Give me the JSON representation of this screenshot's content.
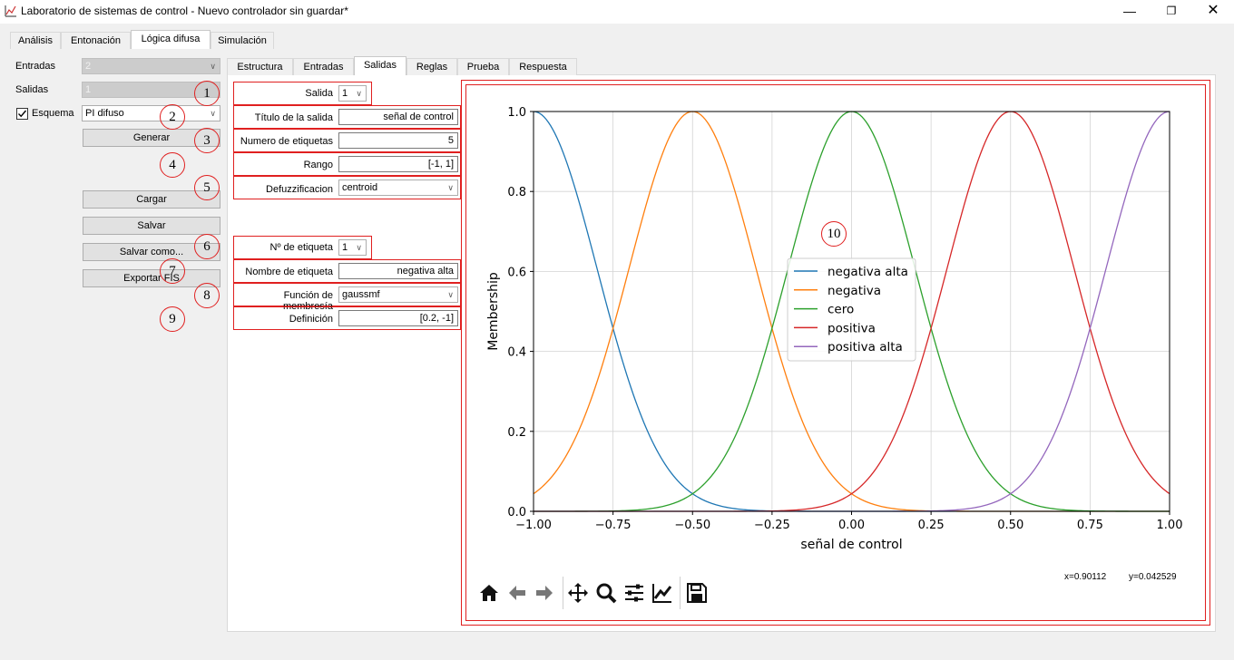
{
  "window": {
    "title": "Laboratorio de sistemas de control - Nuevo controlador sin guardar*"
  },
  "main_tabs": [
    "Análisis",
    "Entonación",
    "Lógica difusa",
    "Simulación"
  ],
  "left_panel": {
    "entradas_label": "Entradas",
    "entradas_value": "2",
    "salidas_label": "Salidas",
    "salidas_value": "1",
    "esquema_label": "Esquema",
    "esquema_checked": true,
    "esquema_value": "PI difuso",
    "generar": "Generar",
    "cargar": "Cargar",
    "salvar": "Salvar",
    "salvar_como": "Salvar como...",
    "exportar": "Exportar FIS"
  },
  "sub_tabs": [
    "Estructura",
    "Entradas",
    "Salidas",
    "Reglas",
    "Prueba",
    "Respuesta"
  ],
  "form": {
    "salida_label": "Salida",
    "salida_value": "1",
    "titulo_label": "Título de la salida",
    "titulo_value": "señal de control",
    "numero_label": "Numero de etiquetas",
    "numero_value": "5",
    "rango_label": "Rango",
    "rango_value": "[-1, 1]",
    "defuzz_label": "Defuzzificacion",
    "defuzz_value": "centroid",
    "etiqueta_label": "Nº de etiqueta",
    "etiqueta_value": "1",
    "nombre_label": "Nombre de etiqueta",
    "nombre_value": "negativa alta",
    "funcion_label": "Función de membresía",
    "funcion_value": "gaussmf",
    "definicion_label": "Definición",
    "definicion_value": "[0.2, -1]"
  },
  "markers": [
    "1",
    "2",
    "3",
    "4",
    "5",
    "6",
    "7",
    "8",
    "9",
    "10"
  ],
  "cursor_readout": {
    "x": "x=0.90112",
    "y": "y=0.042529"
  },
  "chart_data": {
    "type": "line",
    "xlabel": "señal de control",
    "ylabel": "Membership",
    "xlim": [
      -1.0,
      1.0
    ],
    "ylim": [
      0.0,
      1.0
    ],
    "xticks": [
      "−1.00",
      "−0.75",
      "−0.50",
      "−0.25",
      "0.00",
      "0.25",
      "0.50",
      "0.75",
      "1.00"
    ],
    "yticks": [
      "0.0",
      "0.2",
      "0.4",
      "0.6",
      "0.8",
      "1.0"
    ],
    "grid": true,
    "legend_position": "center",
    "series": [
      {
        "name": "negativa alta",
        "function": "gaussmf",
        "sigma": 0.2,
        "center": -1.0,
        "color": "#1f77b4"
      },
      {
        "name": "negativa",
        "function": "gaussmf",
        "sigma": 0.2,
        "center": -0.5,
        "color": "#ff7f0e"
      },
      {
        "name": "cero",
        "function": "gaussmf",
        "sigma": 0.2,
        "center": 0.0,
        "color": "#2ca02c"
      },
      {
        "name": "positiva",
        "function": "gaussmf",
        "sigma": 0.2,
        "center": 0.5,
        "color": "#d62728"
      },
      {
        "name": "positiva alta",
        "function": "gaussmf",
        "sigma": 0.2,
        "center": 1.0,
        "color": "#9467bd"
      }
    ]
  },
  "toolbar_icons": [
    "home-icon",
    "back-arrow-icon",
    "forward-arrow-icon",
    "pan-icon",
    "zoom-icon",
    "configure-subplots-icon",
    "edit-axis-icon",
    "save-icon"
  ]
}
